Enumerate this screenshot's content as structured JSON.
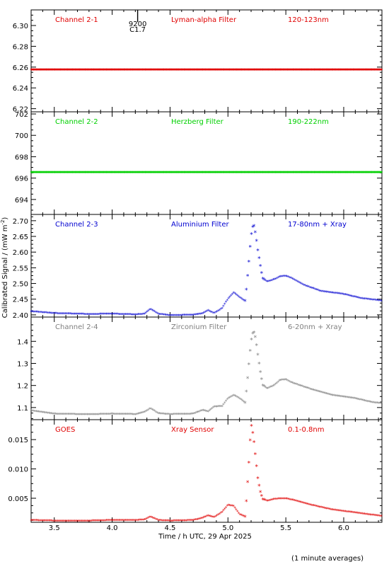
{
  "ylabel": "Calibrated Signal / (mW m⁻²)",
  "ylabel_main": "Calibrated Signal / (mW m",
  "ylabel_exp": "-2",
  "ylabel_close": ")",
  "xlabel": "Time / h UTC, 29 Apr 2025",
  "footnote": "(1 minute averages)",
  "event_marker": {
    "x": 4.22,
    "line1": "9200",
    "line2": "C1.7"
  },
  "colors": {
    "red": "#e00000",
    "green": "#00d000",
    "blue": "#0000d0",
    "gray": "#808080",
    "axis": "#000000"
  },
  "chart_data": [
    {
      "type": "scatter",
      "channel_label": "Channel 2-1",
      "filter_label": "Lyman-alpha Filter",
      "band_label": "120-123nm",
      "color": "red",
      "xlim": [
        3.3,
        6.33
      ],
      "ylim": [
        6.217,
        6.315
      ],
      "yticks": [
        6.22,
        6.24,
        6.26,
        6.28,
        6.3
      ],
      "yticklabels": [
        "6.22",
        "6.24",
        "6.26",
        "6.28",
        "6.30"
      ],
      "series": [
        {
          "x": [
            3.3,
            6.33
          ],
          "y": [
            6.257,
            6.257
          ],
          "shape": "flat"
        }
      ]
    },
    {
      "type": "scatter",
      "channel_label": "Channel 2-2",
      "filter_label": "Herzberg Filter",
      "band_label": "190-222nm",
      "color": "green",
      "xlim": [
        3.3,
        6.33
      ],
      "ylim": [
        692.6,
        702.2
      ],
      "yticks": [
        694,
        696,
        698,
        700,
        702
      ],
      "yticklabels": [
        "694",
        "696",
        "698",
        "700",
        "702"
      ],
      "series": [
        {
          "x": [
            3.3,
            6.33
          ],
          "y": [
            696.5,
            696.5
          ],
          "shape": "flat"
        }
      ]
    },
    {
      "type": "scatter",
      "channel_label": "Channel 2-3",
      "filter_label": "Aluminium Filter",
      "band_label": "17-80nm + Xray",
      "color": "blue",
      "xlim": [
        3.3,
        6.33
      ],
      "ylim": [
        2.393,
        2.72
      ],
      "yticks": [
        2.4,
        2.45,
        2.5,
        2.55,
        2.6,
        2.65,
        2.7
      ],
      "yticklabels": [
        "2.40",
        "2.45",
        "2.50",
        "2.55",
        "2.60",
        "2.65",
        "2.70"
      ],
      "series": [
        {
          "x": [
            3.3,
            3.5,
            3.8,
            4.0,
            4.2,
            4.28,
            4.33,
            4.4,
            4.5,
            4.7,
            4.78,
            4.83,
            4.88,
            4.95,
            5.0,
            5.05,
            5.1,
            5.15,
            5.18,
            5.2,
            5.22,
            5.24,
            5.26,
            5.28,
            5.3,
            5.34,
            5.4,
            5.45,
            5.5,
            5.55,
            5.65,
            5.8,
            6.0,
            6.15,
            6.33
          ],
          "y": [
            2.41,
            2.404,
            2.401,
            2.402,
            2.4,
            2.402,
            2.418,
            2.402,
            2.397,
            2.399,
            2.403,
            2.413,
            2.404,
            2.42,
            2.45,
            2.47,
            2.455,
            2.443,
            2.565,
            2.65,
            2.692,
            2.655,
            2.6,
            2.555,
            2.515,
            2.505,
            2.512,
            2.521,
            2.523,
            2.516,
            2.495,
            2.475,
            2.465,
            2.452,
            2.444
          ]
        }
      ]
    },
    {
      "type": "scatter",
      "channel_label": "Channel 2-4",
      "filter_label": "Zirconium Filter",
      "band_label": "6-20nm + Xray",
      "color": "gray",
      "xlim": [
        3.3,
        6.33
      ],
      "ylim": [
        1.045,
        1.51
      ],
      "yticks": [
        1.1,
        1.2,
        1.3,
        1.4
      ],
      "yticklabels": [
        "1.1",
        "1.2",
        "1.3",
        "1.4"
      ],
      "series": [
        {
          "x": [
            3.3,
            3.5,
            3.8,
            4.0,
            4.2,
            4.28,
            4.33,
            4.4,
            4.5,
            4.7,
            4.78,
            4.83,
            4.88,
            4.95,
            5.0,
            5.05,
            5.1,
            5.15,
            5.18,
            5.2,
            5.22,
            5.24,
            5.26,
            5.28,
            5.3,
            5.34,
            5.4,
            5.45,
            5.5,
            5.55,
            5.7,
            5.9,
            6.1,
            6.25,
            6.33
          ],
          "y": [
            1.085,
            1.07,
            1.067,
            1.07,
            1.068,
            1.078,
            1.095,
            1.072,
            1.068,
            1.07,
            1.087,
            1.08,
            1.102,
            1.105,
            1.14,
            1.155,
            1.14,
            1.12,
            1.29,
            1.4,
            1.45,
            1.41,
            1.33,
            1.26,
            1.2,
            1.185,
            1.2,
            1.223,
            1.226,
            1.212,
            1.185,
            1.155,
            1.14,
            1.122,
            1.118
          ]
        }
      ]
    },
    {
      "type": "scatter",
      "channel_label": "GOES",
      "filter_label": "Xray Sensor",
      "band_label": "0.1-0.8nm",
      "color": "red",
      "xlim": [
        3.3,
        6.33
      ],
      "ylim": [
        0.0009,
        0.0184
      ],
      "yticks": [
        0.005,
        0.01,
        0.015
      ],
      "yticklabels": [
        "0.005",
        "0.010",
        "0.015"
      ],
      "series": [
        {
          "x": [
            3.3,
            3.5,
            3.8,
            4.0,
            4.2,
            4.28,
            4.33,
            4.4,
            4.5,
            4.7,
            4.78,
            4.83,
            4.88,
            4.95,
            5.0,
            5.05,
            5.1,
            5.15,
            5.18,
            5.2,
            5.22,
            5.24,
            5.26,
            5.28,
            5.3,
            5.34,
            5.4,
            5.45,
            5.5,
            5.55,
            5.7,
            5.9,
            6.1,
            6.25,
            6.33
          ],
          "y": [
            0.0012,
            0.0011,
            0.0011,
            0.0012,
            0.0012,
            0.0013,
            0.0018,
            0.0012,
            0.0011,
            0.0012,
            0.0016,
            0.002,
            0.0017,
            0.0026,
            0.0038,
            0.0036,
            0.0022,
            0.0018,
            0.0107,
            0.0176,
            0.0155,
            0.0117,
            0.008,
            0.006,
            0.0048,
            0.0045,
            0.0048,
            0.0049,
            0.0049,
            0.0047,
            0.0039,
            0.003,
            0.0025,
            0.0021,
            0.0019
          ]
        }
      ]
    }
  ],
  "xaxis": {
    "xlim": [
      3.3,
      6.33
    ],
    "ticks": [
      3.5,
      4.0,
      4.5,
      5.0,
      5.5,
      6.0
    ],
    "ticklabels": [
      "3.5",
      "4.0",
      "4.5",
      "5.0",
      "5.5",
      "6.0"
    ]
  }
}
